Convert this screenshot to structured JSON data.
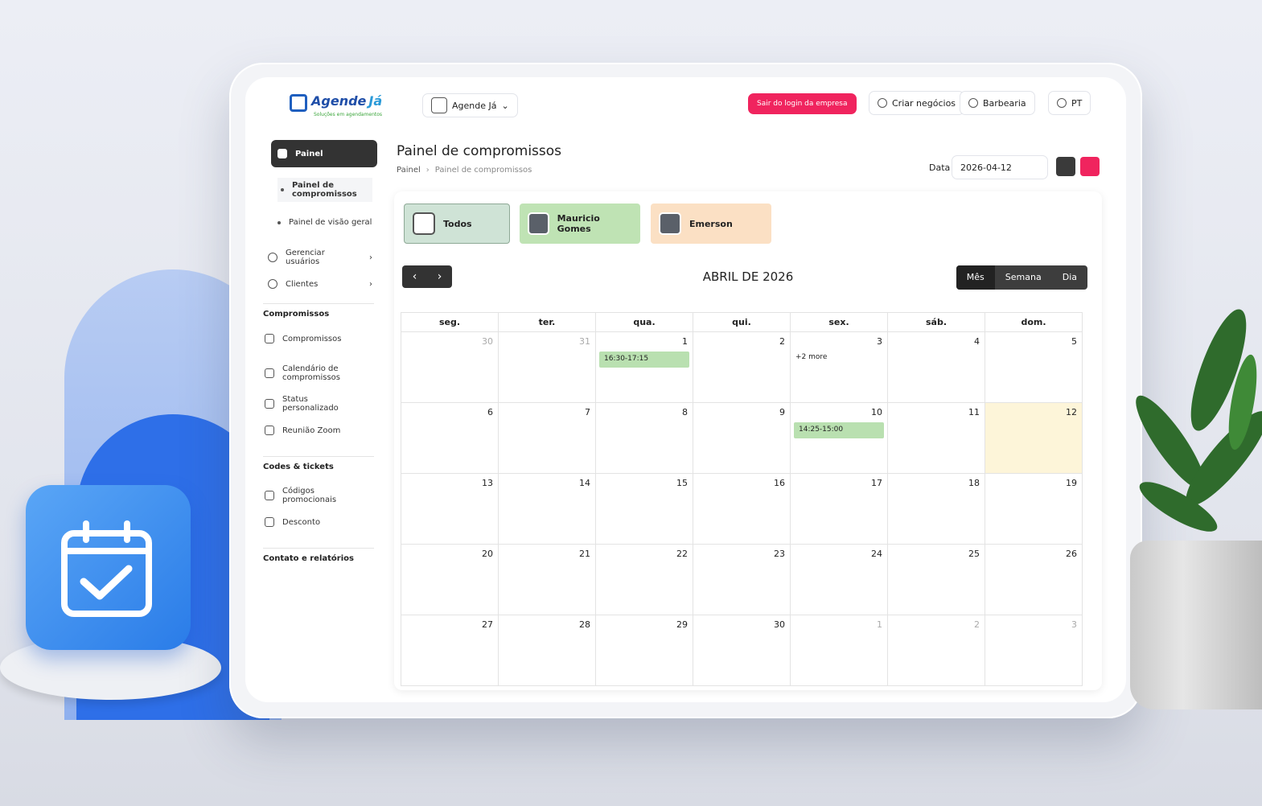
{
  "logo": {
    "name": "Agende",
    "accent": "Já",
    "tagline": "Soluções em agendamentos"
  },
  "topbar": {
    "account": "Agende Já",
    "logout": "Sair do login da empresa",
    "create": "Criar negócios",
    "business": "Barbearia",
    "language": "PT"
  },
  "sidebar": {
    "menu": "Painel",
    "submenu": [
      "Painel de compromissos",
      "Painel de visão geral"
    ],
    "items": [
      "Gerenciar usuários",
      "Clientes"
    ],
    "sections": [
      {
        "title": "Compromissos",
        "items": [
          "Compromissos",
          "Calendário de compromissos",
          "Status personalizado",
          "Reunião Zoom"
        ]
      },
      {
        "title": "Codes & tickets",
        "items": [
          "Códigos promocionais",
          "Desconto"
        ]
      },
      {
        "title": "Contato e relatórios",
        "items": []
      }
    ]
  },
  "page": {
    "title": "Painel de compromissos",
    "breadcrumb": [
      "Painel",
      "Painel de compromissos"
    ],
    "date_label": "Data",
    "date_value": "2026-04-12"
  },
  "staff": [
    {
      "name": "Todos",
      "color": "#cfe3d6"
    },
    {
      "name": "Mauricio Gomes",
      "color": "#bfe3b4"
    },
    {
      "name": "Emerson",
      "color": "#fbe0c4"
    }
  ],
  "calendar": {
    "title": "ABRIL DE 2026",
    "views": [
      "Mês",
      "Semana",
      "Dia"
    ],
    "weekdays": [
      "seg.",
      "ter.",
      "qua.",
      "qui.",
      "sex.",
      "sáb.",
      "dom."
    ],
    "weeks": [
      [
        {
          "day": 30,
          "outside": true
        },
        {
          "day": 31,
          "outside": true
        },
        {
          "day": 1,
          "event": "16:30-17:15"
        },
        {
          "day": 2
        },
        {
          "day": 3,
          "more": "+2 more"
        },
        {
          "day": 4
        },
        {
          "day": 5
        }
      ],
      [
        {
          "day": 6
        },
        {
          "day": 7
        },
        {
          "day": 8
        },
        {
          "day": 9
        },
        {
          "day": 10,
          "event": "14:25-15:00"
        },
        {
          "day": 11
        },
        {
          "day": 12,
          "today": true
        }
      ],
      [
        {
          "day": 13
        },
        {
          "day": 14
        },
        {
          "day": 15
        },
        {
          "day": 16
        },
        {
          "day": 17
        },
        {
          "day": 18
        },
        {
          "day": 19
        }
      ],
      [
        {
          "day": 20
        },
        {
          "day": 21
        },
        {
          "day": 22
        },
        {
          "day": 23
        },
        {
          "day": 24
        },
        {
          "day": 25
        },
        {
          "day": 26
        }
      ],
      [
        {
          "day": 27
        },
        {
          "day": 28
        },
        {
          "day": 29
        },
        {
          "day": 30
        },
        {
          "day": 1,
          "outside": true
        },
        {
          "day": 2,
          "outside": true
        },
        {
          "day": 3,
          "outside": true
        }
      ]
    ]
  }
}
